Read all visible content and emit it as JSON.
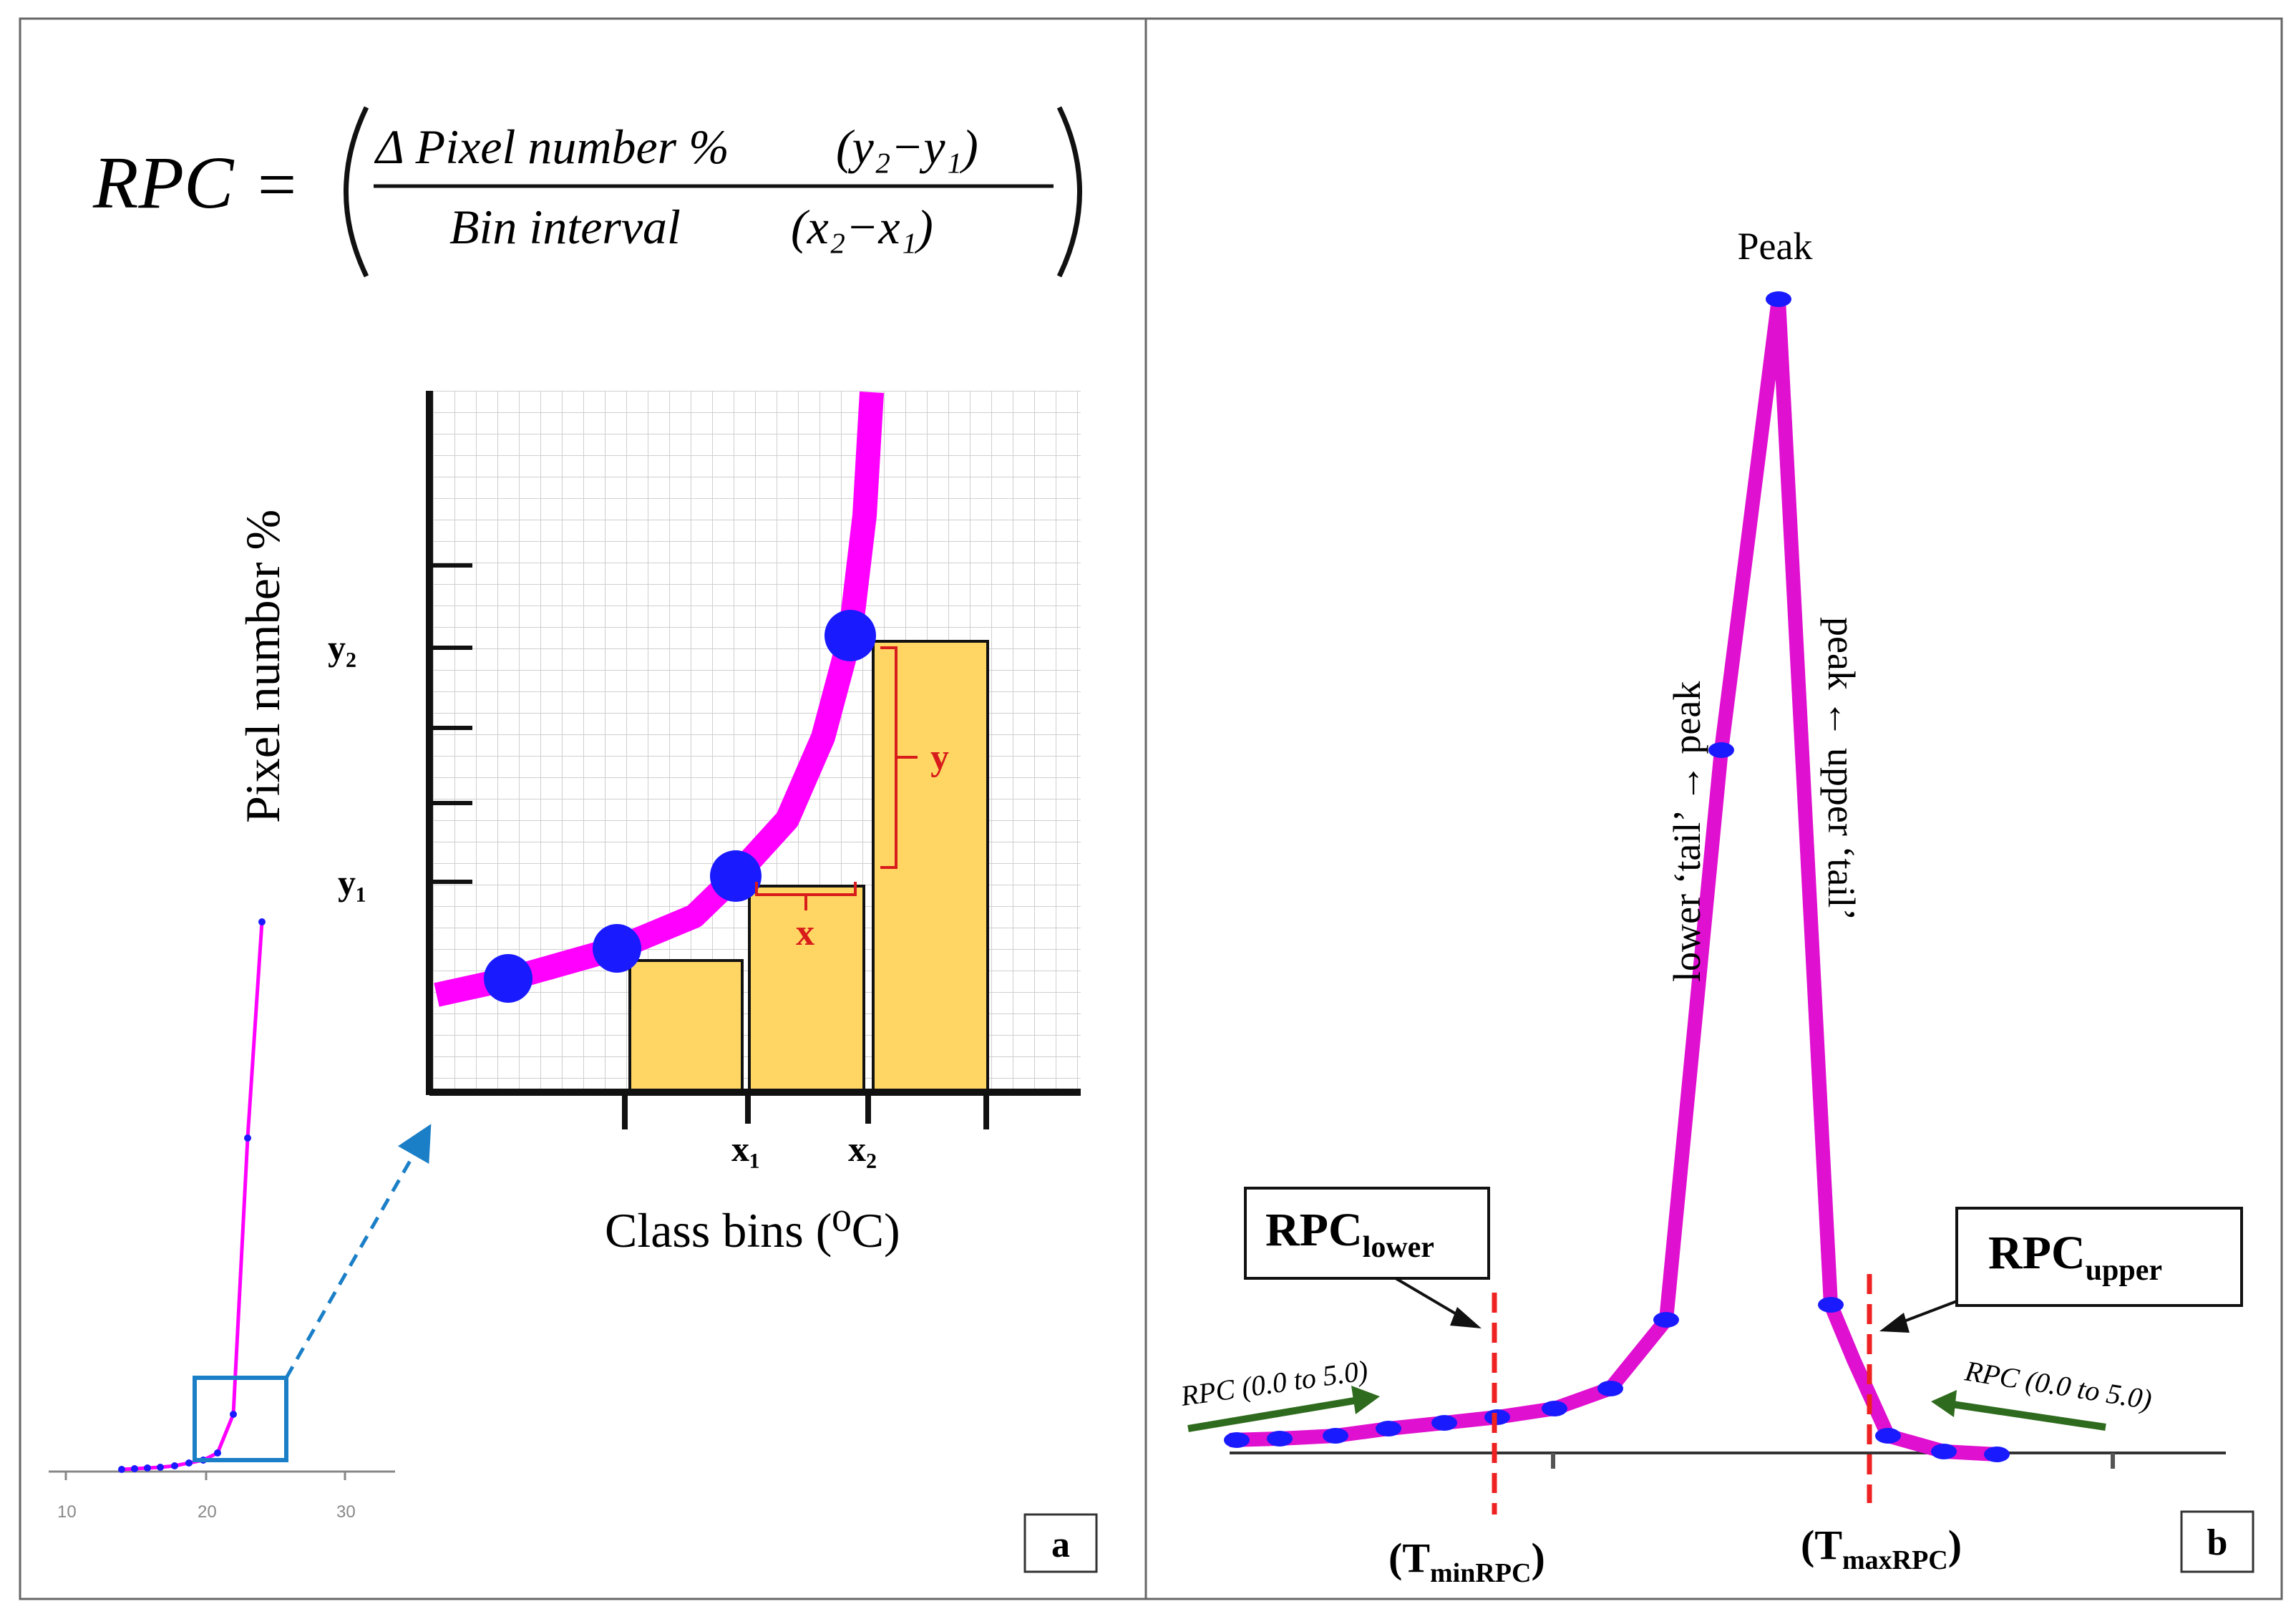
{
  "panel_a": {
    "formula": {
      "lhs": "RPC",
      "equals": "=",
      "numerator_label": "Δ Pixel number %",
      "numerator_diff": "(y₂−y₁)",
      "denominator_label": "Bin interval",
      "denominator_diff": "(x₂−x₁)"
    },
    "ylabel": "Pixel number %",
    "xlabel": "Class bins (⁰C)",
    "y1_label": "y₁",
    "y2_label": "y₂",
    "x1_label": "x₁",
    "x2_label": "x₂",
    "y_brace_label": "y",
    "x_brace_label": "x",
    "bars_relative_heights": [
      0.25,
      0.41,
      0.91
    ],
    "mini_tick_labels": [
      "10",
      "20",
      "30"
    ],
    "badge": "a",
    "colors": {
      "curve": "#ff00ff",
      "point": "#1a1aff",
      "bar": "#ffd663",
      "brace": "#d81b1b",
      "arrow": "#1b7fc7"
    }
  },
  "panel_b": {
    "peak_label": "Peak",
    "lower_tail_label": "lower ‘tail’ → peak",
    "upper_tail_label": "peak ← upper ‘tail’",
    "rpc_lower_main": "RPC",
    "rpc_lower_sub": "lower",
    "rpc_upper_main": "RPC",
    "rpc_upper_sub": "upper",
    "tmin_main": "(T",
    "tmin_sub": "minRPC",
    "tmin_close": ")",
    "tmax_main": "(T",
    "tmax_sub": "maxRPC",
    "tmax_close": ")",
    "rpc_range_left": "RPC (0.0 to 5.0)",
    "rpc_range_right": "RPC (0.0 to 5.0)",
    "badge": "b",
    "colors": {
      "curve": "#e010d0",
      "point": "#1a1aff",
      "dash": "#ee2222",
      "green_arrow": "#2f6b1e"
    }
  }
}
